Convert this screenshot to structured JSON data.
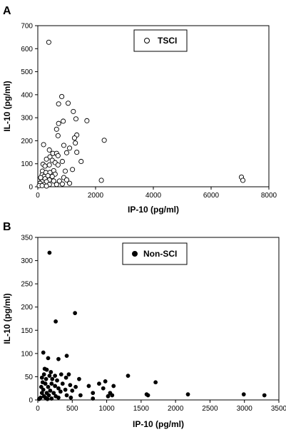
{
  "chart_data": [
    {
      "type": "scatter",
      "panel_label": "A",
      "xlabel": "IP-10 (pg/ml)",
      "ylabel": "IL-10 (pg/ml)",
      "xlim": [
        0,
        8000
      ],
      "ylim": [
        0,
        700
      ],
      "x_ticks": [
        0,
        2000,
        4000,
        6000,
        8000
      ],
      "y_ticks": [
        0,
        100,
        200,
        300,
        400,
        500,
        600,
        700
      ],
      "grid": false,
      "legend_placement": "top-center",
      "marker": "open-circle",
      "series": [
        {
          "name": "TSCI",
          "points": [
            [
              380,
              628
            ],
            [
              830,
              392
            ],
            [
              1050,
              363
            ],
            [
              720,
              360
            ],
            [
              1230,
              327
            ],
            [
              1320,
              295
            ],
            [
              880,
              285
            ],
            [
              1700,
              287
            ],
            [
              720,
              275
            ],
            [
              650,
              250
            ],
            [
              1350,
              225
            ],
            [
              700,
              222
            ],
            [
              1270,
              212
            ],
            [
              2300,
              202
            ],
            [
              1300,
              190
            ],
            [
              900,
              180
            ],
            [
              200,
              183
            ],
            [
              1100,
              168
            ],
            [
              400,
              160
            ],
            [
              1000,
              148
            ],
            [
              520,
              145
            ],
            [
              650,
              145
            ],
            [
              700,
              135
            ],
            [
              420,
              130
            ],
            [
              1350,
              150
            ],
            [
              300,
              120
            ],
            [
              500,
              115
            ],
            [
              1500,
              110
            ],
            [
              850,
              110
            ],
            [
              600,
              105
            ],
            [
              180,
              98
            ],
            [
              400,
              95
            ],
            [
              250,
              90
            ],
            [
              700,
              95
            ],
            [
              1200,
              75
            ],
            [
              950,
              68
            ],
            [
              550,
              70
            ],
            [
              160,
              68
            ],
            [
              280,
              62
            ],
            [
              420,
              62
            ],
            [
              600,
              55
            ],
            [
              150,
              52
            ],
            [
              220,
              45
            ],
            [
              350,
              48
            ],
            [
              500,
              45
            ],
            [
              900,
              40
            ],
            [
              120,
              35
            ],
            [
              250,
              35
            ],
            [
              400,
              30
            ],
            [
              1000,
              30
            ],
            [
              150,
              22
            ],
            [
              300,
              22
            ],
            [
              550,
              25
            ],
            [
              750,
              25
            ],
            [
              2200,
              28
            ],
            [
              1100,
              15
            ],
            [
              80,
              15
            ],
            [
              200,
              10
            ],
            [
              400,
              10
            ],
            [
              650,
              10
            ],
            [
              850,
              12
            ],
            [
              50,
              5
            ],
            [
              150,
              5
            ],
            [
              300,
              3
            ],
            [
              100,
              40
            ],
            [
              7050,
              42
            ],
            [
              7100,
              28
            ]
          ]
        }
      ]
    },
    {
      "type": "scatter",
      "panel_label": "B",
      "xlabel": "IP-10 (pg/ml)",
      "ylabel": "IL-10 (pg/ml)",
      "xlim": [
        0,
        3500
      ],
      "ylim": [
        0,
        350
      ],
      "x_ticks": [
        0,
        500,
        1000,
        1500,
        2000,
        2500,
        3000,
        3500
      ],
      "y_ticks": [
        0,
        50,
        100,
        150,
        200,
        250,
        300,
        350
      ],
      "grid": false,
      "legend_placement": "top-center",
      "marker": "filled-circle",
      "series": [
        {
          "name": "Non-SCI",
          "points": [
            [
              170,
              317
            ],
            [
              540,
              187
            ],
            [
              260,
              169
            ],
            [
              80,
              102
            ],
            [
              420,
              95
            ],
            [
              150,
              90
            ],
            [
              300,
              88
            ],
            [
              100,
              67
            ],
            [
              130,
              65
            ],
            [
              190,
              60
            ],
            [
              90,
              55
            ],
            [
              170,
              52
            ],
            [
              250,
              52
            ],
            [
              340,
              55
            ],
            [
              450,
              55
            ],
            [
              1310,
              52
            ],
            [
              60,
              48
            ],
            [
              120,
              45
            ],
            [
              210,
              45
            ],
            [
              280,
              42
            ],
            [
              410,
              48
            ],
            [
              600,
              45
            ],
            [
              980,
              40
            ],
            [
              1710,
              38
            ],
            [
              890,
              35
            ],
            [
              740,
              30
            ],
            [
              70,
              38
            ],
            [
              110,
              35
            ],
            [
              200,
              35
            ],
            [
              250,
              30
            ],
            [
              360,
              35
            ],
            [
              470,
              32
            ],
            [
              1100,
              30
            ],
            [
              50,
              28
            ],
            [
              150,
              28
            ],
            [
              300,
              25
            ],
            [
              550,
              28
            ],
            [
              80,
              22
            ],
            [
              180,
              20
            ],
            [
              400,
              22
            ],
            [
              500,
              20
            ],
            [
              950,
              25
            ],
            [
              60,
              15
            ],
            [
              130,
              15
            ],
            [
              230,
              15
            ],
            [
              330,
              18
            ],
            [
              800,
              15
            ],
            [
              1050,
              15
            ],
            [
              1580,
              12
            ],
            [
              1600,
              10
            ],
            [
              2180,
              12
            ],
            [
              2990,
              12
            ],
            [
              3290,
              10
            ],
            [
              90,
              8
            ],
            [
              160,
              10
            ],
            [
              260,
              8
            ],
            [
              420,
              10
            ],
            [
              620,
              10
            ],
            [
              1020,
              8
            ],
            [
              1080,
              10
            ],
            [
              40,
              5
            ],
            [
              110,
              5
            ],
            [
              200,
              3
            ],
            [
              300,
              5
            ],
            [
              480,
              5
            ],
            [
              800,
              3
            ],
            [
              20,
              2
            ],
            [
              140,
              2
            ]
          ]
        }
      ]
    }
  ]
}
